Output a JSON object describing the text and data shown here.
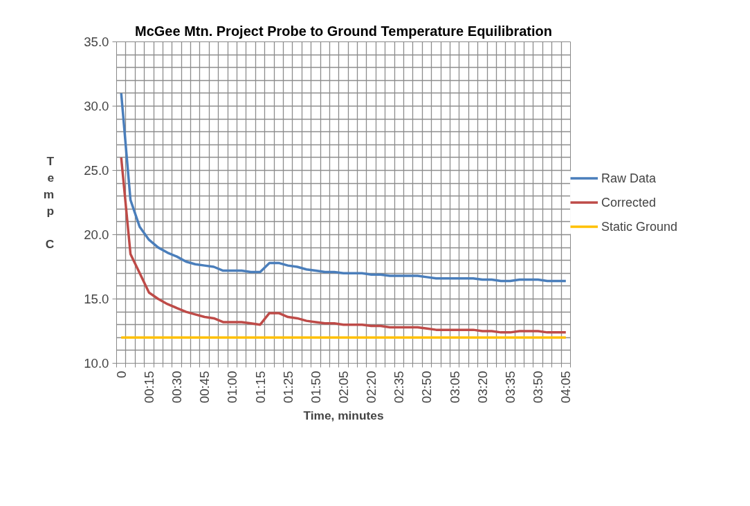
{
  "chart_data": {
    "type": "line",
    "title": "McGee Mtn. Project Probe to Ground Temperature Equilibration",
    "xlabel": "Time, minutes",
    "ylabel": "Temp C",
    "categories": [
      "0",
      null,
      null,
      "00:15",
      null,
      null,
      "00:30",
      null,
      null,
      "00:45",
      null,
      null,
      "01:00",
      null,
      null,
      "01:15",
      null,
      null,
      "01:25",
      null,
      null,
      "01:50",
      null,
      null,
      "02:05",
      null,
      null,
      "02:20",
      null,
      null,
      "02:35",
      null,
      null,
      "02:50",
      null,
      null,
      "03:05",
      null,
      null,
      "03:20",
      null,
      null,
      "03:35",
      null,
      null,
      "03:50",
      null,
      null,
      "04:05"
    ],
    "series": [
      {
        "name": "Raw Data",
        "color": "#4a7ebb",
        "values": [
          31.0,
          22.7,
          20.6,
          19.6,
          19.0,
          18.6,
          18.3,
          17.9,
          17.7,
          17.6,
          17.5,
          17.2,
          17.2,
          17.2,
          17.1,
          17.1,
          17.8,
          17.8,
          17.6,
          17.5,
          17.3,
          17.2,
          17.1,
          17.1,
          17.0,
          17.0,
          17.0,
          16.9,
          16.9,
          16.8,
          16.8,
          16.8,
          16.8,
          16.7,
          16.6,
          16.6,
          16.6,
          16.6,
          16.6,
          16.5,
          16.5,
          16.4,
          16.4,
          16.5,
          16.5,
          16.5,
          16.4,
          16.4,
          16.4
        ]
      },
      {
        "name": "Corrected",
        "color": "#be4b48",
        "values": [
          26.0,
          18.5,
          17.0,
          15.5,
          15.0,
          14.6,
          14.3,
          14.0,
          13.8,
          13.6,
          13.5,
          13.2,
          13.2,
          13.2,
          13.1,
          13.0,
          13.9,
          13.9,
          13.6,
          13.5,
          13.3,
          13.2,
          13.1,
          13.1,
          13.0,
          13.0,
          13.0,
          12.9,
          12.9,
          12.8,
          12.8,
          12.8,
          12.8,
          12.7,
          12.6,
          12.6,
          12.6,
          12.6,
          12.6,
          12.5,
          12.5,
          12.4,
          12.4,
          12.5,
          12.5,
          12.5,
          12.4,
          12.4,
          12.4
        ]
      },
      {
        "name": "Static Ground",
        "color": "#ffc000",
        "values": [
          12.0,
          12.0,
          12.0,
          12.0,
          12.0,
          12.0,
          12.0,
          12.0,
          12.0,
          12.0,
          12.0,
          12.0,
          12.0,
          12.0,
          12.0,
          12.0,
          12.0,
          12.0,
          12.0,
          12.0,
          12.0,
          12.0,
          12.0,
          12.0,
          12.0,
          12.0,
          12.0,
          12.0,
          12.0,
          12.0,
          12.0,
          12.0,
          12.0,
          12.0,
          12.0,
          12.0,
          12.0,
          12.0,
          12.0,
          12.0,
          12.0,
          12.0,
          12.0,
          12.0,
          12.0,
          12.0,
          12.0,
          12.0,
          12.0
        ]
      }
    ],
    "ylim": [
      10,
      35
    ],
    "yticks": [
      {
        "value": 10,
        "label": "10.0"
      },
      {
        "value": 15,
        "label": "15.0"
      },
      {
        "value": 20,
        "label": "20.0"
      },
      {
        "value": 25,
        "label": "25.0"
      },
      {
        "value": 30,
        "label": "30.0"
      },
      {
        "value": 35,
        "label": "35.0"
      }
    ],
    "grid": true,
    "legend": "right",
    "marker": "none",
    "line_style": "solid"
  }
}
